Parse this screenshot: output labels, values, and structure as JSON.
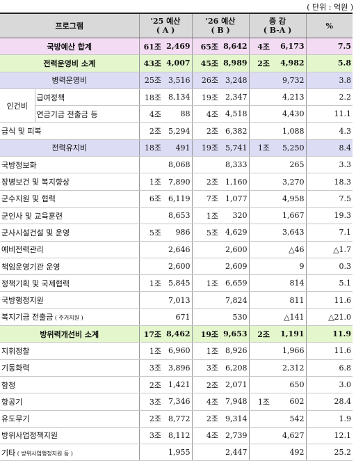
{
  "unit": "( 단위 : 억원 )",
  "headers": {
    "program": "프로그램",
    "y25": "'25 예산",
    "y25_sub": "( A )",
    "y26": "'26 예산",
    "y26_sub": "( B )",
    "diff": "증 감",
    "diff_sub": "( B-A )",
    "pct": "%"
  },
  "rows": [
    {
      "label": "국방예산 합계",
      "a_jo": "61조",
      "a": "2,469",
      "b_jo": "65조",
      "b": "8,642",
      "d_jo": "4조",
      "d": "6,173",
      "pct": "7.5"
    },
    {
      "label": "전력운영비 소계",
      "a_jo": "43조",
      "a": "4,007",
      "b_jo": "45조",
      "b": "8,989",
      "d_jo": "2조",
      "d": "4,982",
      "pct": "5.8"
    },
    {
      "label": "병력운영비",
      "a_jo": "25조",
      "a": "3,516",
      "b_jo": "26조",
      "b": "3,248",
      "d_jo": "",
      "d": "9,732",
      "pct": "3.8"
    },
    {
      "group": "인건비",
      "label": "급여정책",
      "a_jo": "18조",
      "a": "8,134",
      "b_jo": "19조",
      "b": "2,347",
      "d_jo": "",
      "d": "4,213",
      "pct": "2.2"
    },
    {
      "label": "연금기금 전출금 등",
      "a_jo": "4조",
      "a": "88",
      "b_jo": "4조",
      "b": "4,518",
      "d_jo": "",
      "d": "4,430",
      "pct": "11.1"
    },
    {
      "label": "급식 및 피복",
      "a_jo": "2조",
      "a": "5,294",
      "b_jo": "2조",
      "b": "6,382",
      "d_jo": "",
      "d": "1,088",
      "pct": "4.3"
    },
    {
      "label": "전력유지비",
      "a_jo": "18조",
      "a": "491",
      "b_jo": "19조",
      "b": "5,741",
      "d_jo": "1조",
      "d": "5,250",
      "pct": "8.4"
    },
    {
      "label": "국방정보화",
      "a_jo": "",
      "a": "8,068",
      "b_jo": "",
      "b": "8,333",
      "d_jo": "",
      "d": "265",
      "pct": "3.3"
    },
    {
      "label": "장병보건 및 복지향상",
      "a_jo": "1조",
      "a": "7,890",
      "b_jo": "2조",
      "b": "1,160",
      "d_jo": "",
      "d": "3,270",
      "pct": "18.3"
    },
    {
      "label": "군수지원 및 협력",
      "a_jo": "6조",
      "a": "6,119",
      "b_jo": "7조",
      "b": "1,077",
      "d_jo": "",
      "d": "4,958",
      "pct": "7.5"
    },
    {
      "label": "군인사 및 교육훈련",
      "a_jo": "",
      "a": "8,653",
      "b_jo": "1조",
      "b": "320",
      "d_jo": "",
      "d": "1,667",
      "pct": "19.3"
    },
    {
      "label": "군사시설건설 및 운영",
      "a_jo": "5조",
      "a": "986",
      "b_jo": "5조",
      "b": "4,629",
      "d_jo": "",
      "d": "3,643",
      "pct": "7.1"
    },
    {
      "label": "예비전력관리",
      "a_jo": "",
      "a": "2,646",
      "b_jo": "",
      "b": "2,600",
      "d_jo": "",
      "d": "△46",
      "pct": "△1.7"
    },
    {
      "label": "책임운영기관 운영",
      "a_jo": "",
      "a": "2,600",
      "b_jo": "",
      "b": "2,609",
      "d_jo": "",
      "d": "9",
      "pct": "0.3"
    },
    {
      "label": "정책기획 및 국제협력",
      "a_jo": "1조",
      "a": "5,845",
      "b_jo": "1조",
      "b": "6,659",
      "d_jo": "",
      "d": "814",
      "pct": "5.1"
    },
    {
      "label": "국방행정지원",
      "a_jo": "",
      "a": "7,013",
      "b_jo": "",
      "b": "7,824",
      "d_jo": "",
      "d": "811",
      "pct": "11.6"
    },
    {
      "label": "복지기금 전출금",
      "label_sub": "( 주거지원 )",
      "a_jo": "",
      "a": "671",
      "b_jo": "",
      "b": "530",
      "d_jo": "",
      "d": "△141",
      "pct": "△21.0"
    },
    {
      "label": "방위력개선비 소계",
      "a_jo": "17조",
      "a": "8,462",
      "b_jo": "19조",
      "b": "9,653",
      "d_jo": "2조",
      "d": "1,191",
      "pct": "11.9"
    },
    {
      "label": "지휘정찰",
      "a_jo": "1조",
      "a": "6,960",
      "b_jo": "1조",
      "b": "8,926",
      "d_jo": "",
      "d": "1,966",
      "pct": "11.6"
    },
    {
      "label": "기동화력",
      "a_jo": "3조",
      "a": "3,896",
      "b_jo": "3조",
      "b": "6,208",
      "d_jo": "",
      "d": "2,312",
      "pct": "6.8"
    },
    {
      "label": "함정",
      "a_jo": "2조",
      "a": "1,421",
      "b_jo": "2조",
      "b": "2,071",
      "d_jo": "",
      "d": "650",
      "pct": "3.0"
    },
    {
      "label": "항공기",
      "a_jo": "3조",
      "a": "7,346",
      "b_jo": "4조",
      "b": "7,948",
      "d_jo": "1조",
      "d": "602",
      "pct": "28.4"
    },
    {
      "label": "유도무기",
      "a_jo": "2조",
      "a": "8,772",
      "b_jo": "2조",
      "b": "9,314",
      "d_jo": "",
      "d": "542",
      "pct": "1.9"
    },
    {
      "label": "방위사업정책지원",
      "a_jo": "3조",
      "a": "8,112",
      "b_jo": "4조",
      "b": "2,739",
      "d_jo": "",
      "d": "4,627",
      "pct": "12.1"
    },
    {
      "label": "기타",
      "label_sub": "( 방위사업행정지원 등 )",
      "a_jo": "",
      "a": "1,955",
      "b_jo": "",
      "b": "2,447",
      "d_jo": "",
      "d": "492",
      "pct": "25.2"
    }
  ]
}
